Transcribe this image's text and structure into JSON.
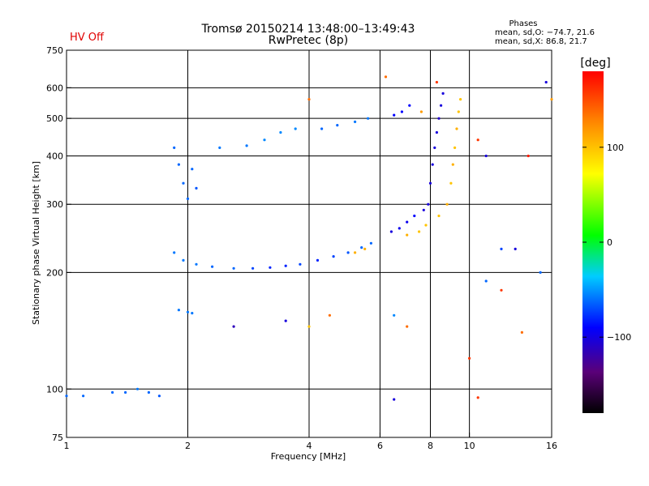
{
  "status": {
    "label": "HV Off",
    "color": "#e00000"
  },
  "header": {
    "title": "Tromsø 20150214 13:48:00–13:49:43",
    "subtitle": "RwPretec (8p)"
  },
  "stats": {
    "title": "Phases",
    "line_o": "mean, sd,O: −74.7, 21.6",
    "line_x": "mean, sd,X:  86.8, 21.7"
  },
  "colorbar": {
    "label": "[deg]",
    "ticks": [
      "100",
      "0",
      "−100"
    ],
    "tick_values": [
      100,
      0,
      -100
    ],
    "range": [
      -180,
      180
    ]
  },
  "chart_data": {
    "type": "scatter",
    "xlabel": "Frequency [MHz]",
    "ylabel": "Stationary phase Virtual Height [km]",
    "xscale": "log",
    "yscale": "log",
    "xlim": [
      1,
      16
    ],
    "ylim": [
      75,
      750
    ],
    "xticks": [
      1,
      2,
      4,
      6,
      8,
      10,
      16
    ],
    "xtick_labels": [
      "1",
      "2",
      "4",
      "6",
      "8",
      "10",
      "16"
    ],
    "yticks": [
      75,
      100,
      200,
      300,
      400,
      500,
      600,
      750
    ],
    "ytick_labels": [
      "75",
      "100",
      "200",
      "300",
      "400",
      "500",
      "600",
      "750"
    ],
    "x_gridlines": [
      2,
      4,
      6,
      8,
      10
    ],
    "y_gridlines": [
      100,
      200,
      300,
      400,
      500,
      600
    ],
    "grid": true,
    "series": [
      {
        "points": [
          [
            1.0,
            96,
            -70
          ],
          [
            1.1,
            96,
            -70
          ],
          [
            1.3,
            98,
            -70
          ],
          [
            1.4,
            98,
            -70
          ],
          [
            1.5,
            100,
            -65
          ],
          [
            1.6,
            98,
            -70
          ],
          [
            1.7,
            96,
            -75
          ],
          [
            1.9,
            160,
            -65
          ],
          [
            2.0,
            158,
            -65
          ],
          [
            2.05,
            157,
            -65
          ],
          [
            1.85,
            420,
            -70
          ],
          [
            1.9,
            380,
            -70
          ],
          [
            1.95,
            340,
            -70
          ],
          [
            2.0,
            310,
            -70
          ],
          [
            2.05,
            370,
            -70
          ],
          [
            2.1,
            330,
            -75
          ],
          [
            1.85,
            225,
            -65
          ],
          [
            1.95,
            215,
            -65
          ],
          [
            2.1,
            210,
            -65
          ],
          [
            2.3,
            207,
            -70
          ],
          [
            2.6,
            205,
            -70
          ],
          [
            2.9,
            205,
            -80
          ],
          [
            3.2,
            206,
            -90
          ],
          [
            3.5,
            208,
            -90
          ],
          [
            3.8,
            210,
            -80
          ],
          [
            4.2,
            215,
            -90
          ],
          [
            4.6,
            220,
            -80
          ],
          [
            5.0,
            225,
            -75
          ],
          [
            5.4,
            232,
            -70
          ],
          [
            5.7,
            238,
            -70
          ],
          [
            2.4,
            420,
            -65
          ],
          [
            2.8,
            425,
            -65
          ],
          [
            3.1,
            440,
            -60
          ],
          [
            3.4,
            460,
            -60
          ],
          [
            3.7,
            470,
            -60
          ],
          [
            4.3,
            470,
            -70
          ],
          [
            4.7,
            480,
            -70
          ],
          [
            5.2,
            490,
            -65
          ],
          [
            5.6,
            500,
            -65
          ],
          [
            6.4,
            255,
            -110
          ],
          [
            6.7,
            260,
            -105
          ],
          [
            7.0,
            270,
            -105
          ],
          [
            7.3,
            280,
            -100
          ],
          [
            7.7,
            290,
            -110
          ],
          [
            7.9,
            300,
            -110
          ],
          [
            8.0,
            340,
            -110
          ],
          [
            8.1,
            380,
            -110
          ],
          [
            8.2,
            420,
            -110
          ],
          [
            8.3,
            460,
            -110
          ],
          [
            8.4,
            500,
            -115
          ],
          [
            8.5,
            540,
            -110
          ],
          [
            8.6,
            580,
            -110
          ],
          [
            6.5,
            510,
            -100
          ],
          [
            6.8,
            520,
            -100
          ],
          [
            7.1,
            540,
            -100
          ],
          [
            8.4,
            280,
            100
          ],
          [
            8.8,
            300,
            110
          ],
          [
            9.0,
            340,
            100
          ],
          [
            9.1,
            380,
            110
          ],
          [
            9.2,
            420,
            100
          ],
          [
            9.3,
            470,
            110
          ],
          [
            9.4,
            520,
            100
          ],
          [
            9.5,
            560,
            100
          ],
          [
            5.2,
            225,
            110
          ],
          [
            5.5,
            230,
            110
          ],
          [
            7.0,
            250,
            110
          ],
          [
            7.5,
            255,
            100
          ],
          [
            7.8,
            265,
            100
          ],
          [
            4.0,
            560,
            140
          ],
          [
            6.2,
            640,
            140
          ],
          [
            7.6,
            520,
            120
          ],
          [
            8.3,
            620,
            160
          ],
          [
            10.5,
            440,
            160
          ],
          [
            11.0,
            400,
            -110
          ],
          [
            12.0,
            230,
            -80
          ],
          [
            13.0,
            230,
            -110
          ],
          [
            14.0,
            400,
            170
          ],
          [
            15.5,
            620,
            -110
          ],
          [
            16.0,
            560,
            120
          ],
          [
            15.0,
            200,
            -70
          ],
          [
            11.0,
            190,
            -70
          ],
          [
            12.0,
            180,
            160
          ],
          [
            10.0,
            120,
            160
          ],
          [
            10.5,
            95,
            160
          ],
          [
            13.5,
            140,
            140
          ],
          [
            6.5,
            155,
            -60
          ],
          [
            6.5,
            94,
            -110
          ],
          [
            3.5,
            150,
            -110
          ],
          [
            4.5,
            155,
            140
          ],
          [
            2.6,
            145,
            -120
          ],
          [
            7.0,
            145,
            140
          ],
          [
            4.0,
            145,
            100
          ]
        ]
      }
    ]
  }
}
